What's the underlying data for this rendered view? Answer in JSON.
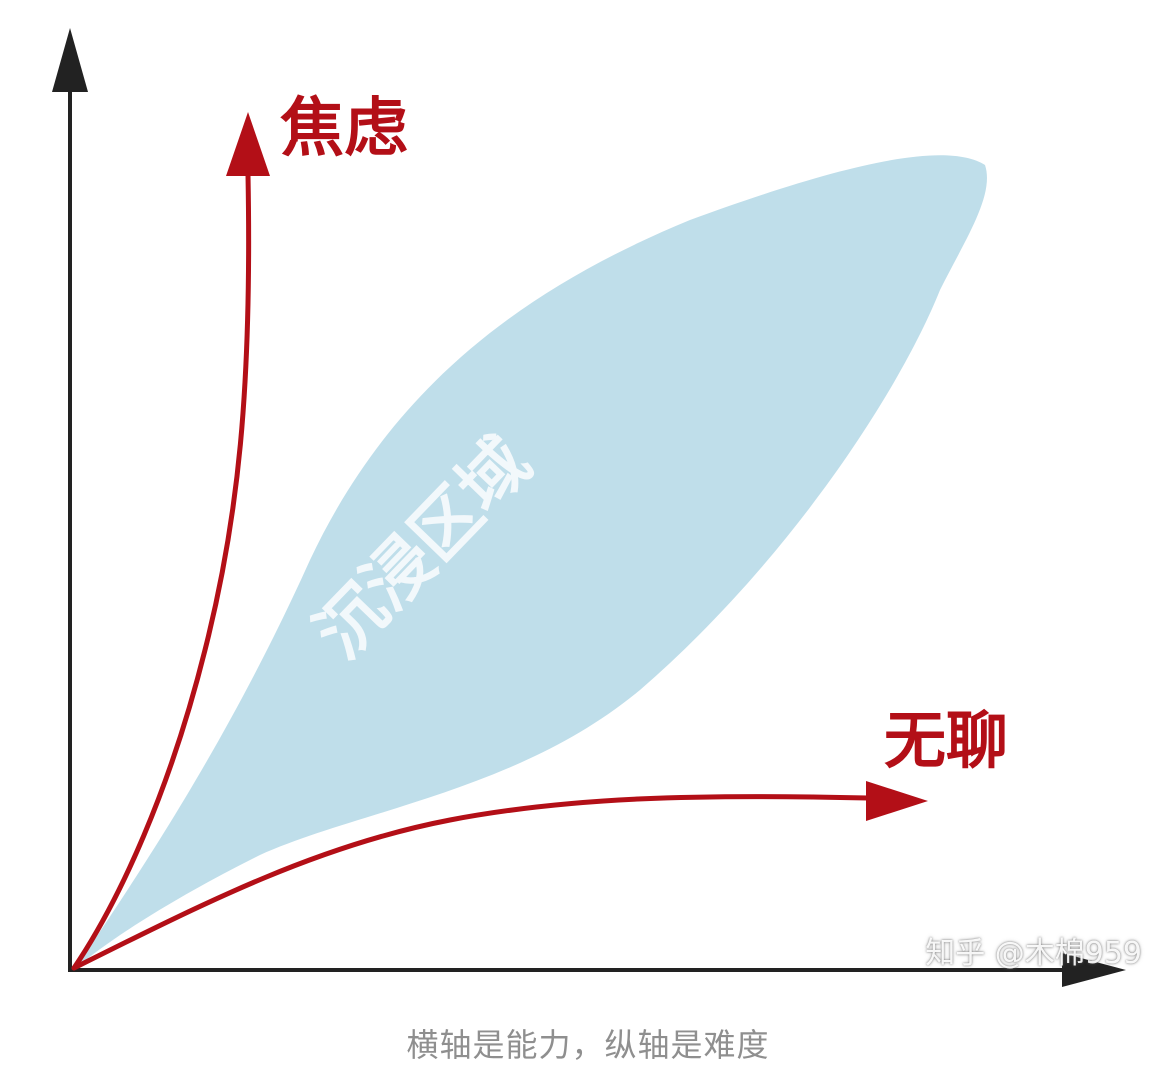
{
  "diagram": {
    "labels": {
      "anxiety": "焦虑",
      "boredom": "无聊",
      "flow_zone": "沉浸区域"
    },
    "colors": {
      "axis": "#222222",
      "curve": "#b30f17",
      "flow_fill": "#bfdeea",
      "flow_label": "#f2f8fb"
    }
  },
  "caption": "横轴是能力，纵轴是难度",
  "watermark": "知乎 @木棉959"
}
